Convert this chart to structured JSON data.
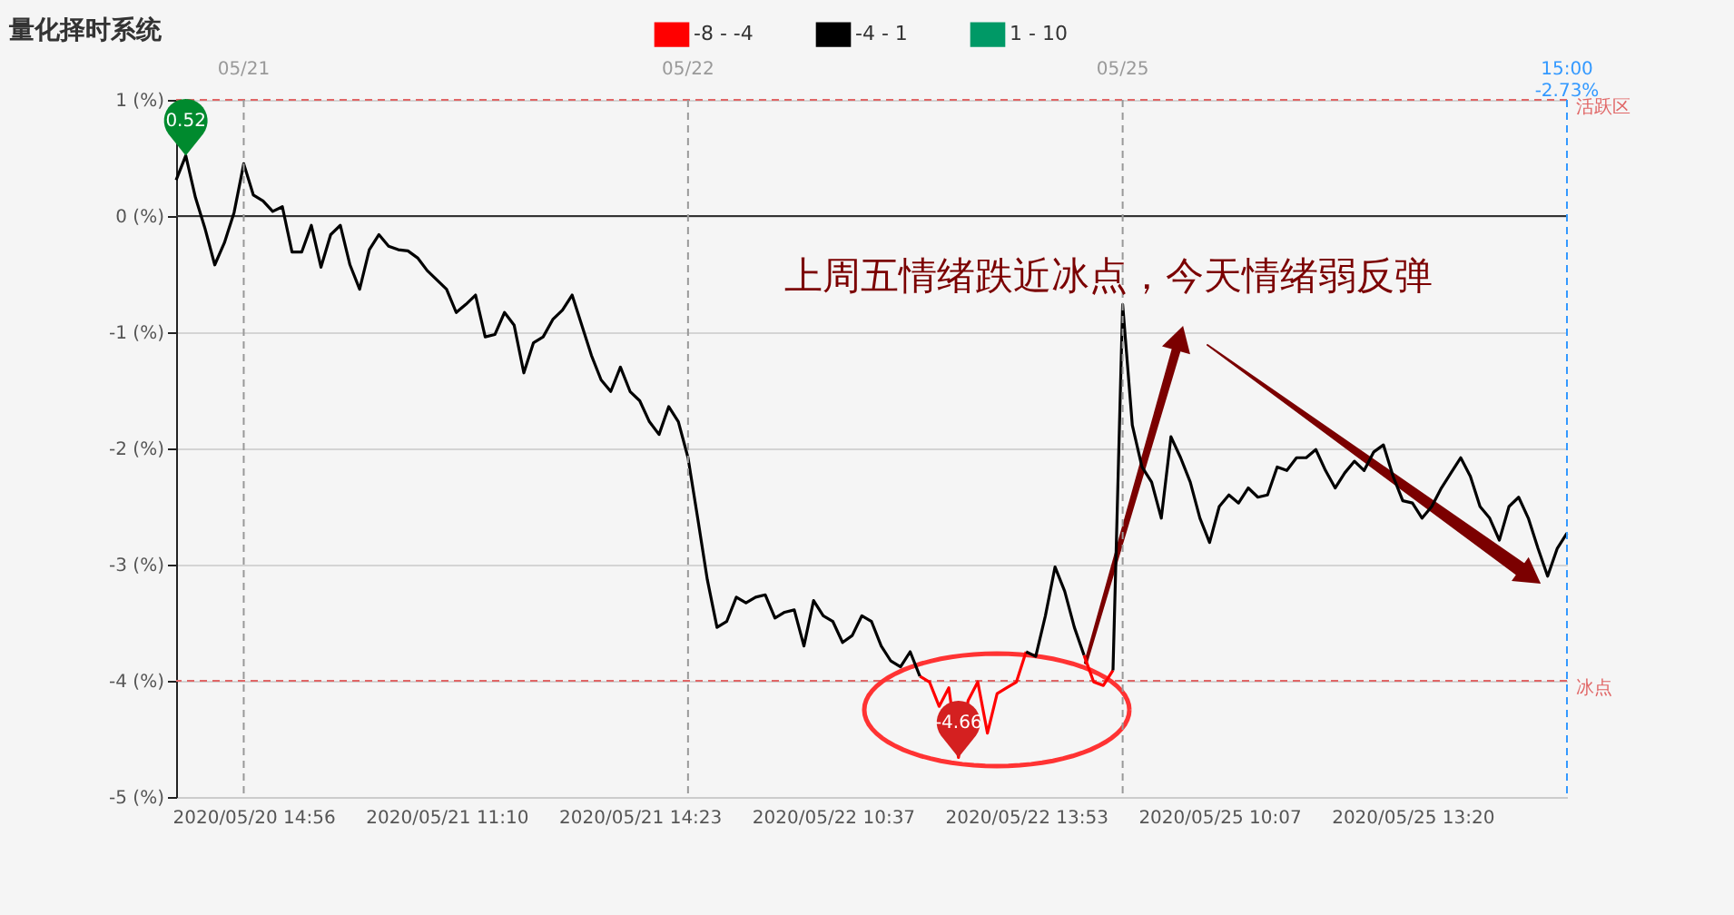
{
  "chart_data": {
    "type": "line",
    "title": "量化择时系统",
    "categories": [
      null,
      null,
      null,
      null,
      null,
      null,
      null,
      null,
      "2020/05/20 14:56",
      null,
      null,
      null,
      null,
      null,
      null,
      null,
      null,
      null,
      null,
      null,
      null,
      null,
      null,
      null,
      null,
      null,
      null,
      null,
      "2020/05/21 11:10",
      null,
      null,
      null,
      null,
      null,
      null,
      null,
      null,
      null,
      null,
      null,
      null,
      null,
      null,
      null,
      null,
      null,
      null,
      null,
      "2020/05/21 14:23",
      null,
      null,
      null,
      null,
      null,
      null,
      null,
      null,
      null,
      null,
      null,
      null,
      null,
      null,
      null,
      null,
      null,
      null,
      null,
      "2020/05/22 10:37",
      null,
      null,
      null,
      null,
      null,
      null,
      null,
      null,
      null,
      null,
      null,
      null,
      null,
      null,
      null,
      null,
      null,
      null,
      null,
      "2020/05/22 13:53",
      null,
      null,
      null,
      null,
      null,
      null,
      null,
      null,
      null,
      null,
      null,
      null,
      null,
      null,
      null,
      null,
      null,
      null,
      null,
      "2020/05/25 10:07",
      null,
      null,
      null,
      null,
      null,
      null,
      null,
      null,
      null,
      null,
      null,
      null,
      null,
      null,
      null,
      null,
      null,
      null,
      null,
      "2020/05/25 13:20",
      null,
      null,
      null,
      null,
      null,
      null,
      null,
      null,
      null,
      null,
      null,
      null,
      null,
      null,
      null,
      null
    ],
    "series": [
      {
        "name": "-8 - -4",
        "color": "#ff0000",
        "values": [
          null,
          null,
          null,
          null,
          null,
          null,
          null,
          null,
          null,
          null,
          null,
          null,
          null,
          null,
          null,
          null,
          null,
          null,
          null,
          null,
          null,
          null,
          null,
          null,
          null,
          null,
          null,
          null,
          null,
          null,
          null,
          null,
          null,
          null,
          null,
          null,
          null,
          null,
          null,
          null,
          null,
          null,
          null,
          null,
          null,
          null,
          null,
          null,
          null,
          null,
          null,
          null,
          null,
          null,
          null,
          null,
          null,
          null,
          null,
          null,
          null,
          null,
          null,
          null,
          null,
          null,
          null,
          null,
          null,
          null,
          null,
          null,
          null,
          null,
          null,
          null,
          null,
          -3.96,
          -4.01,
          -4.22,
          -4.06,
          -4.66,
          -4.17,
          -4.01,
          -4.45,
          -4.11,
          -4.06,
          -4.01,
          -3.75,
          null,
          null,
          null,
          null,
          null,
          -3.78,
          -4.01,
          -4.04,
          -3.91,
          null,
          null,
          null,
          null,
          null,
          null,
          null,
          null,
          null,
          null,
          null,
          null,
          null,
          null,
          null,
          null,
          null,
          null,
          null,
          null,
          null,
          null,
          null,
          null,
          null,
          null,
          null,
          null,
          null,
          null,
          null,
          null,
          null,
          null,
          null,
          null,
          null,
          null,
          null,
          null,
          null,
          null,
          null,
          null,
          null,
          null,
          null
        ]
      },
      {
        "name": "-4 - 1",
        "color": "#000000",
        "values": [
          0.31,
          0.52,
          0.16,
          -0.11,
          -0.42,
          -0.23,
          0.03,
          0.45,
          0.18,
          0.13,
          0.04,
          0.08,
          -0.31,
          -0.31,
          -0.08,
          -0.44,
          -0.16,
          -0.08,
          -0.42,
          -0.63,
          -0.29,
          -0.16,
          -0.26,
          -0.29,
          -0.3,
          -0.36,
          -0.47,
          -0.55,
          -0.63,
          -0.83,
          -0.76,
          -0.68,
          -1.04,
          -1.02,
          -0.83,
          -0.94,
          -1.35,
          -1.09,
          -1.04,
          -0.89,
          -0.81,
          -0.68,
          -0.94,
          -1.2,
          -1.41,
          -1.51,
          -1.3,
          -1.51,
          -1.59,
          -1.77,
          -1.88,
          -1.64,
          -1.77,
          -2.08,
          -2.6,
          -3.13,
          -3.54,
          -3.49,
          -3.28,
          -3.33,
          -3.28,
          -3.26,
          -3.46,
          -3.41,
          -3.39,
          -3.7,
          -3.31,
          -3.44,
          -3.49,
          -3.67,
          -3.61,
          -3.44,
          -3.49,
          -3.7,
          -3.83,
          -3.88,
          -3.75,
          -3.96,
          null,
          null,
          null,
          null,
          null,
          null,
          null,
          null,
          null,
          null,
          -3.75,
          -3.79,
          -3.44,
          -3.02,
          -3.23,
          -3.54,
          -3.78,
          null,
          null,
          -3.91,
          -0.76,
          -1.8,
          -2.16,
          -2.29,
          -2.6,
          -1.9,
          -2.08,
          -2.29,
          -2.6,
          -2.81,
          -2.5,
          -2.4,
          -2.47,
          -2.34,
          -2.42,
          -2.4,
          -2.16,
          -2.19,
          -2.08,
          -2.08,
          -2.01,
          -2.19,
          -2.34,
          -2.21,
          -2.11,
          -2.19,
          -2.03,
          -1.97,
          -2.24,
          -2.45,
          -2.47,
          -2.6,
          -2.5,
          -2.34,
          -2.21,
          -2.08,
          -2.24,
          -2.5,
          -2.6,
          -2.79,
          -2.5,
          -2.42,
          -2.6,
          -2.86,
          -3.1,
          -2.86,
          -2.73
        ]
      },
      {
        "name": "1 - 10",
        "color": "#009966",
        "values": [
          null,
          null,
          null,
          null,
          null,
          null,
          null,
          null,
          null,
          null,
          null,
          null,
          null,
          null,
          null,
          null,
          null,
          null,
          null,
          null,
          null,
          null,
          null,
          null,
          null,
          null,
          null,
          null,
          null,
          null,
          null,
          null,
          null,
          null,
          null,
          null,
          null,
          null,
          null,
          null,
          null,
          null,
          null,
          null,
          null,
          null,
          null,
          null,
          null,
          null,
          null,
          null,
          null,
          null,
          null,
          null,
          null,
          null,
          null,
          null,
          null,
          null,
          null,
          null,
          null,
          null,
          null,
          null,
          null,
          null,
          null,
          null,
          null,
          null,
          null,
          null,
          null,
          null,
          null,
          null,
          null,
          null,
          null,
          null,
          null,
          null,
          null,
          null,
          null,
          null,
          null,
          null,
          null,
          null,
          null,
          null,
          null,
          null,
          null,
          null,
          null,
          null,
          null,
          null,
          null,
          null,
          null,
          null,
          null,
          null,
          null,
          null,
          null,
          null,
          null,
          null,
          null,
          null,
          null,
          null,
          null,
          null,
          null,
          null,
          null,
          null,
          null,
          null,
          null,
          null,
          null,
          null,
          null,
          null,
          null,
          null,
          null,
          null,
          null,
          null,
          null,
          null,
          null,
          null,
          null
        ]
      }
    ],
    "ylim": [
      -5,
      1
    ],
    "yticks": [
      {
        "value": -5,
        "label": "-5 (%)"
      },
      {
        "value": -4,
        "label": "-4 (%)"
      },
      {
        "value": -3,
        "label": "-3 (%)"
      },
      {
        "value": -2,
        "label": "-2 (%)"
      },
      {
        "value": -1,
        "label": "-1 (%)"
      },
      {
        "value": 0,
        "label": "0 (%)"
      },
      {
        "value": 1,
        "label": "1 (%)"
      }
    ],
    "grid": "y",
    "legend": "top",
    "ref_lines": [
      {
        "axis": "y",
        "value": 1,
        "label": "活跃区",
        "color": "#e06666",
        "line_style": "dashed"
      },
      {
        "axis": "y",
        "value": -4,
        "label": "冰点",
        "color": "#e06666",
        "line_style": "dashed"
      },
      {
        "axis": "y",
        "value": 0,
        "color": "#333333",
        "line_style": "solid"
      }
    ],
    "annotations": [
      {
        "text": "0.52",
        "y": 0.52
      },
      {
        "text": "-4.66",
        "y": -4.66
      },
      "05/21",
      "05/22",
      "05/25",
      "15:00\n-2.73%",
      "上周五情绪跌近冰点，今天情绪弱反弹"
    ]
  }
}
